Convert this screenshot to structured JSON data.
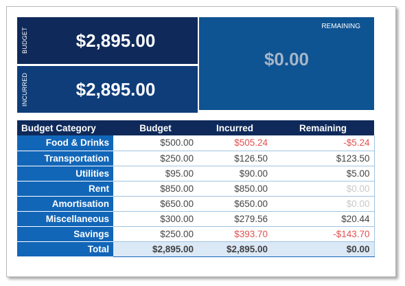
{
  "summary": {
    "budget_label": "BUDGET",
    "budget_value": "$2,895.00",
    "incurred_label": "INCURRED",
    "incurred_value": "$2,895.00",
    "remaining_label": "REMAINING",
    "remaining_value": "$0.00"
  },
  "table": {
    "headers": [
      "Budget Category",
      "Budget",
      "Incurred",
      "Remaining"
    ],
    "rows": [
      {
        "category": "Food & Drinks",
        "budget": "$500.00",
        "incurred": "$505.24",
        "remaining": "-$5.24"
      },
      {
        "category": "Transportation",
        "budget": "$250.00",
        "incurred": "$126.50",
        "remaining": "$123.50"
      },
      {
        "category": "Utilities",
        "budget": "$95.00",
        "incurred": "$90.00",
        "remaining": "$5.00"
      },
      {
        "category": "Rent",
        "budget": "$850.00",
        "incurred": "$850.00",
        "remaining": "$0.00"
      },
      {
        "category": "Amortisation",
        "budget": "$650.00",
        "incurred": "$650.00",
        "remaining": "$0.00"
      },
      {
        "category": "Miscellaneous",
        "budget": "$300.00",
        "incurred": "$279.56",
        "remaining": "$20.44"
      },
      {
        "category": "Savings",
        "budget": "$250.00",
        "incurred": "$393.70",
        "remaining": "-$143.70"
      }
    ],
    "total": {
      "label": "Total",
      "budget": "$2,895.00",
      "incurred": "$2,895.00",
      "remaining": "$0.00"
    }
  },
  "colors": {
    "header_navy": "#0f2a5a",
    "category_blue": "#1266b8",
    "negative_red": "#e05050",
    "zero_gray": "#c8c8c8"
  }
}
